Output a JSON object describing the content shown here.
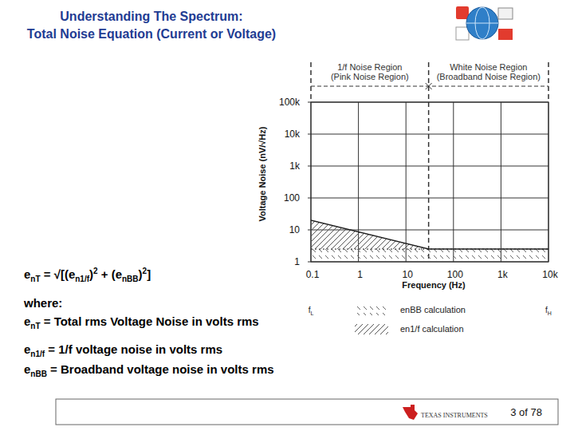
{
  "header": {
    "title": [
      "Understanding The Spectrum:",
      "Total Noise Equation (Current or Voltage)"
    ]
  },
  "equation": [
    {
      "text": "e"
    },
    {
      "text": "nT",
      "style": "sub"
    },
    {
      "text": " = √[(e"
    },
    {
      "text": "n1/f",
      "style": "sub"
    },
    {
      "text": ")"
    },
    {
      "text": "2",
      "style": "sup"
    },
    {
      "text": " + (e"
    },
    {
      "text": "nBB",
      "style": "sub"
    },
    {
      "text": ")"
    },
    {
      "text": "2",
      "style": "sup"
    },
    {
      "text": "]"
    }
  ],
  "definitions": [
    [
      {
        "text": "where:"
      }
    ],
    [
      {
        "text": "e"
      },
      {
        "text": "nT",
        "style": "sub"
      },
      {
        "text": " = Total rms Voltage Noise in volts rms"
      }
    ],
    [
      {
        "text": "e"
      },
      {
        "text": "n1/f",
        "style": "sub"
      },
      {
        "text": " = 1/f voltage noise in volts rms"
      }
    ],
    [
      {
        "text": "e"
      },
      {
        "text": "nBB",
        "style": "sub"
      },
      {
        "text": " = Broadband voltage noise in volts rms"
      }
    ]
  ],
  "chart_data": {
    "type": "line",
    "xlabel": "Frequency (Hz)",
    "ylabel": "Voltage Noise (nV/√Hz)",
    "log": true,
    "grid": true,
    "legend": "bottom",
    "xlim": [
      0.1,
      10000
    ],
    "ylim": [
      1,
      100000
    ],
    "xticks": [
      0.1,
      1,
      10,
      100,
      {
        "value": 1000,
        "label": "1k"
      },
      {
        "value": 10000,
        "label": "10k"
      }
    ],
    "yticks": [
      1,
      10,
      100,
      {
        "value": 1000,
        "label": "1k"
      },
      {
        "value": 10000,
        "label": "10k"
      },
      {
        "value": 100000,
        "label": "100k"
      }
    ],
    "x": [
      0.1,
      30,
      10000
    ],
    "series": [
      {
        "name": "enBB calculation",
        "type": "area",
        "line_style": "dotted",
        "values": [
          2.5,
          2.5,
          2.5
        ]
      },
      {
        "name": "en1/f calculation",
        "type": "area",
        "line_style": "solid",
        "values": [
          20,
          2.5,
          2.5
        ]
      }
    ],
    "boundary_x": 30,
    "regions": [
      {
        "label": "1/f Noise Region",
        "sublabel": "(Pink Noise Region)"
      },
      {
        "label": "White Noise Region",
        "sublabel": "(Broadband Noise Region)"
      }
    ],
    "x_annotations": [
      {
        "x": 0.1,
        "label": "f",
        "sub": "L"
      },
      {
        "x": 10000,
        "label": "f",
        "sub": "H"
      }
    ]
  },
  "footer": {
    "logo": "TEXAS INSTRUMENTS",
    "page": "3 of 78"
  }
}
